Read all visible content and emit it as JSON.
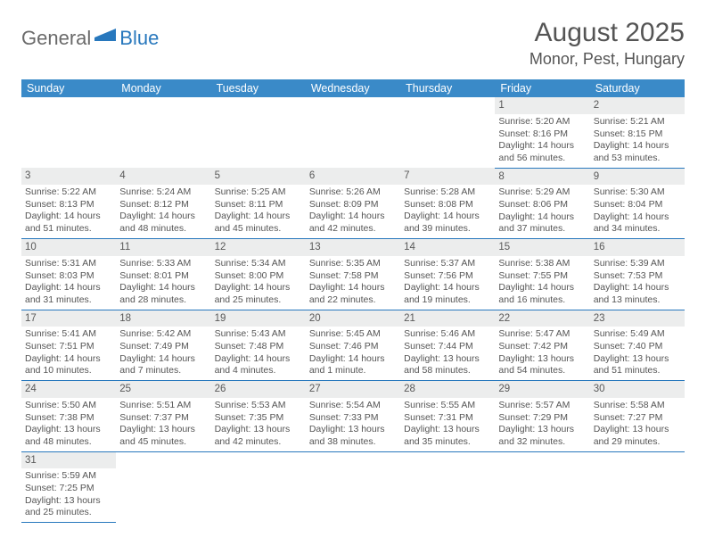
{
  "logo": {
    "general": "General",
    "blue": "Blue"
  },
  "header": {
    "month_title": "August 2025",
    "location": "Monor, Pest, Hungary"
  },
  "colors": {
    "header_bg": "#3a8ac8",
    "daynum_bg": "#eceded",
    "cell_border": "#2878bd",
    "text": "#555555"
  },
  "weekdays": [
    "Sunday",
    "Monday",
    "Tuesday",
    "Wednesday",
    "Thursday",
    "Friday",
    "Saturday"
  ],
  "weeks": [
    [
      null,
      null,
      null,
      null,
      null,
      {
        "d": "1",
        "sr": "Sunrise: 5:20 AM",
        "ss": "Sunset: 8:16 PM",
        "dl1": "Daylight: 14 hours",
        "dl2": "and 56 minutes."
      },
      {
        "d": "2",
        "sr": "Sunrise: 5:21 AM",
        "ss": "Sunset: 8:15 PM",
        "dl1": "Daylight: 14 hours",
        "dl2": "and 53 minutes."
      }
    ],
    [
      {
        "d": "3",
        "sr": "Sunrise: 5:22 AM",
        "ss": "Sunset: 8:13 PM",
        "dl1": "Daylight: 14 hours",
        "dl2": "and 51 minutes."
      },
      {
        "d": "4",
        "sr": "Sunrise: 5:24 AM",
        "ss": "Sunset: 8:12 PM",
        "dl1": "Daylight: 14 hours",
        "dl2": "and 48 minutes."
      },
      {
        "d": "5",
        "sr": "Sunrise: 5:25 AM",
        "ss": "Sunset: 8:11 PM",
        "dl1": "Daylight: 14 hours",
        "dl2": "and 45 minutes."
      },
      {
        "d": "6",
        "sr": "Sunrise: 5:26 AM",
        "ss": "Sunset: 8:09 PM",
        "dl1": "Daylight: 14 hours",
        "dl2": "and 42 minutes."
      },
      {
        "d": "7",
        "sr": "Sunrise: 5:28 AM",
        "ss": "Sunset: 8:08 PM",
        "dl1": "Daylight: 14 hours",
        "dl2": "and 39 minutes."
      },
      {
        "d": "8",
        "sr": "Sunrise: 5:29 AM",
        "ss": "Sunset: 8:06 PM",
        "dl1": "Daylight: 14 hours",
        "dl2": "and 37 minutes."
      },
      {
        "d": "9",
        "sr": "Sunrise: 5:30 AM",
        "ss": "Sunset: 8:04 PM",
        "dl1": "Daylight: 14 hours",
        "dl2": "and 34 minutes."
      }
    ],
    [
      {
        "d": "10",
        "sr": "Sunrise: 5:31 AM",
        "ss": "Sunset: 8:03 PM",
        "dl1": "Daylight: 14 hours",
        "dl2": "and 31 minutes."
      },
      {
        "d": "11",
        "sr": "Sunrise: 5:33 AM",
        "ss": "Sunset: 8:01 PM",
        "dl1": "Daylight: 14 hours",
        "dl2": "and 28 minutes."
      },
      {
        "d": "12",
        "sr": "Sunrise: 5:34 AM",
        "ss": "Sunset: 8:00 PM",
        "dl1": "Daylight: 14 hours",
        "dl2": "and 25 minutes."
      },
      {
        "d": "13",
        "sr": "Sunrise: 5:35 AM",
        "ss": "Sunset: 7:58 PM",
        "dl1": "Daylight: 14 hours",
        "dl2": "and 22 minutes."
      },
      {
        "d": "14",
        "sr": "Sunrise: 5:37 AM",
        "ss": "Sunset: 7:56 PM",
        "dl1": "Daylight: 14 hours",
        "dl2": "and 19 minutes."
      },
      {
        "d": "15",
        "sr": "Sunrise: 5:38 AM",
        "ss": "Sunset: 7:55 PM",
        "dl1": "Daylight: 14 hours",
        "dl2": "and 16 minutes."
      },
      {
        "d": "16",
        "sr": "Sunrise: 5:39 AM",
        "ss": "Sunset: 7:53 PM",
        "dl1": "Daylight: 14 hours",
        "dl2": "and 13 minutes."
      }
    ],
    [
      {
        "d": "17",
        "sr": "Sunrise: 5:41 AM",
        "ss": "Sunset: 7:51 PM",
        "dl1": "Daylight: 14 hours",
        "dl2": "and 10 minutes."
      },
      {
        "d": "18",
        "sr": "Sunrise: 5:42 AM",
        "ss": "Sunset: 7:49 PM",
        "dl1": "Daylight: 14 hours",
        "dl2": "and 7 minutes."
      },
      {
        "d": "19",
        "sr": "Sunrise: 5:43 AM",
        "ss": "Sunset: 7:48 PM",
        "dl1": "Daylight: 14 hours",
        "dl2": "and 4 minutes."
      },
      {
        "d": "20",
        "sr": "Sunrise: 5:45 AM",
        "ss": "Sunset: 7:46 PM",
        "dl1": "Daylight: 14 hours",
        "dl2": "and 1 minute."
      },
      {
        "d": "21",
        "sr": "Sunrise: 5:46 AM",
        "ss": "Sunset: 7:44 PM",
        "dl1": "Daylight: 13 hours",
        "dl2": "and 58 minutes."
      },
      {
        "d": "22",
        "sr": "Sunrise: 5:47 AM",
        "ss": "Sunset: 7:42 PM",
        "dl1": "Daylight: 13 hours",
        "dl2": "and 54 minutes."
      },
      {
        "d": "23",
        "sr": "Sunrise: 5:49 AM",
        "ss": "Sunset: 7:40 PM",
        "dl1": "Daylight: 13 hours",
        "dl2": "and 51 minutes."
      }
    ],
    [
      {
        "d": "24",
        "sr": "Sunrise: 5:50 AM",
        "ss": "Sunset: 7:38 PM",
        "dl1": "Daylight: 13 hours",
        "dl2": "and 48 minutes."
      },
      {
        "d": "25",
        "sr": "Sunrise: 5:51 AM",
        "ss": "Sunset: 7:37 PM",
        "dl1": "Daylight: 13 hours",
        "dl2": "and 45 minutes."
      },
      {
        "d": "26",
        "sr": "Sunrise: 5:53 AM",
        "ss": "Sunset: 7:35 PM",
        "dl1": "Daylight: 13 hours",
        "dl2": "and 42 minutes."
      },
      {
        "d": "27",
        "sr": "Sunrise: 5:54 AM",
        "ss": "Sunset: 7:33 PM",
        "dl1": "Daylight: 13 hours",
        "dl2": "and 38 minutes."
      },
      {
        "d": "28",
        "sr": "Sunrise: 5:55 AM",
        "ss": "Sunset: 7:31 PM",
        "dl1": "Daylight: 13 hours",
        "dl2": "and 35 minutes."
      },
      {
        "d": "29",
        "sr": "Sunrise: 5:57 AM",
        "ss": "Sunset: 7:29 PM",
        "dl1": "Daylight: 13 hours",
        "dl2": "and 32 minutes."
      },
      {
        "d": "30",
        "sr": "Sunrise: 5:58 AM",
        "ss": "Sunset: 7:27 PM",
        "dl1": "Daylight: 13 hours",
        "dl2": "and 29 minutes."
      }
    ],
    [
      {
        "d": "31",
        "sr": "Sunrise: 5:59 AM",
        "ss": "Sunset: 7:25 PM",
        "dl1": "Daylight: 13 hours",
        "dl2": "and 25 minutes."
      },
      null,
      null,
      null,
      null,
      null,
      null
    ]
  ]
}
